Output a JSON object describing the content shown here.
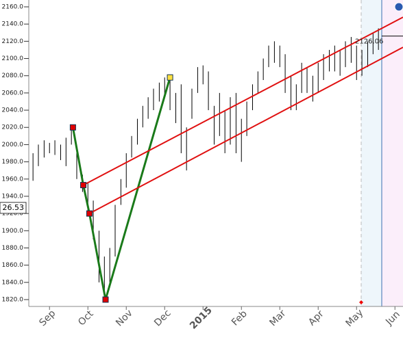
{
  "chart_data": {
    "type": "hlbar",
    "xlim": [
      0.46,
      10.21
    ],
    "ylim": [
      1810,
      2170
    ],
    "xticks": [
      {
        "value": 1,
        "label": "Sep"
      },
      {
        "value": 2,
        "label": "Oct"
      },
      {
        "value": 3,
        "label": "Nov"
      },
      {
        "value": 4,
        "label": "Dec"
      },
      {
        "value": 5,
        "label": "2015"
      },
      {
        "value": 6,
        "label": "Feb"
      },
      {
        "value": 7,
        "label": "Mar"
      },
      {
        "value": 8,
        "label": "Apr"
      },
      {
        "value": 9,
        "label": "May"
      },
      {
        "value": 10,
        "label": "Jun"
      }
    ],
    "yticks": [
      {
        "value": 1820,
        "label": "1820.0"
      },
      {
        "value": 1840,
        "label": "1840.0"
      },
      {
        "value": 1860,
        "label": "1860.0"
      },
      {
        "value": 1880,
        "label": "1880.0"
      },
      {
        "value": 1900,
        "label": "1900.0"
      },
      {
        "value": 1920,
        "label": "1920.0"
      },
      {
        "value": 1940,
        "label": "1940.0"
      },
      {
        "value": 1960,
        "label": "1960.0"
      },
      {
        "value": 1980,
        "label": "1980.0"
      },
      {
        "value": 2000,
        "label": "2000.0"
      },
      {
        "value": 2020,
        "label": "2020.0"
      },
      {
        "value": 2040,
        "label": "2040.0"
      },
      {
        "value": 2060,
        "label": "2060.0"
      },
      {
        "value": 2080,
        "label": "2080.0"
      },
      {
        "value": 2100,
        "label": "2100.0"
      },
      {
        "value": 2120,
        "label": "2120.0"
      },
      {
        "value": 2140,
        "label": "2140.0"
      },
      {
        "value": 2160,
        "label": "2160.0"
      }
    ],
    "highlight_tick_color": "#8b0000",
    "highlight_tick": 4,
    "bar_color": "#000000",
    "x": [
      0.57,
      0.71,
      0.86,
      1.0,
      1.14,
      1.29,
      1.43,
      1.57,
      1.71,
      1.86,
      2.0,
      2.14,
      2.29,
      2.43,
      2.57,
      2.71,
      2.86,
      3.0,
      3.14,
      3.29,
      3.43,
      3.57,
      3.71,
      3.86,
      4.0,
      4.14,
      4.29,
      4.43,
      4.57,
      4.71,
      4.86,
      5.0,
      5.14,
      5.29,
      5.43,
      5.57,
      5.71,
      5.86,
      6.0,
      6.14,
      6.29,
      6.43,
      6.57,
      6.71,
      6.86,
      7.0,
      7.14,
      7.29,
      7.43,
      7.57,
      7.71,
      7.86,
      8.0,
      8.14,
      8.29,
      8.43,
      8.57,
      8.71,
      8.86,
      9.0,
      9.14,
      9.29,
      9.43,
      9.57
    ],
    "high": [
      1990,
      2000,
      2005,
      2002,
      2005,
      2000,
      2008,
      2022,
      2000,
      1965,
      1955,
      1935,
      1900,
      1870,
      1880,
      1930,
      1960,
      1990,
      2010,
      2030,
      2045,
      2055,
      2065,
      2072,
      2078,
      2080,
      2060,
      2070,
      2020,
      2065,
      2090,
      2092,
      2085,
      2045,
      2060,
      2040,
      2055,
      2060,
      2030,
      2050,
      2070,
      2085,
      2100,
      2115,
      2120,
      2115,
      2105,
      2080,
      2070,
      2095,
      2090,
      2080,
      2095,
      2105,
      2110,
      2115,
      2110,
      2120,
      2125,
      2115,
      2110,
      2120,
      2130,
      2135
    ],
    "low": [
      1958,
      1975,
      1985,
      1990,
      1988,
      1982,
      1975,
      2000,
      1960,
      1945,
      1920,
      1890,
      1840,
      1820,
      1840,
      1870,
      1930,
      1950,
      1985,
      2000,
      2020,
      2030,
      2040,
      2050,
      2055,
      2040,
      2025,
      1990,
      1970,
      2030,
      2060,
      2070,
      2040,
      2000,
      2010,
      1990,
      2000,
      1990,
      1980,
      2010,
      2040,
      2060,
      2075,
      2090,
      2095,
      2090,
      2060,
      2040,
      2040,
      2060,
      2060,
      2050,
      2060,
      2075,
      2085,
      2085,
      2080,
      2090,
      2095,
      2075,
      2080,
      2090,
      2105,
      2110
    ],
    "lines": [
      {
        "color": "#1a7a1a",
        "x": [
          1.61,
          1.88,
          2.04,
          2.46,
          4.14
        ],
        "y": [
          2020,
          1953,
          1920,
          1820,
          2078
        ]
      },
      {
        "color": "#e01010",
        "x": [
          1.88,
          10.21
        ],
        "y": [
          1953,
          2148
        ]
      },
      {
        "color": "#e01010",
        "x": [
          2.04,
          10.21
        ],
        "y": [
          1920,
          2113
        ]
      }
    ],
    "crosshair": {
      "value": 1926.53,
      "label": "26.53"
    },
    "last_price": {
      "value": 2126.06,
      "label": "2126.06"
    }
  }
}
